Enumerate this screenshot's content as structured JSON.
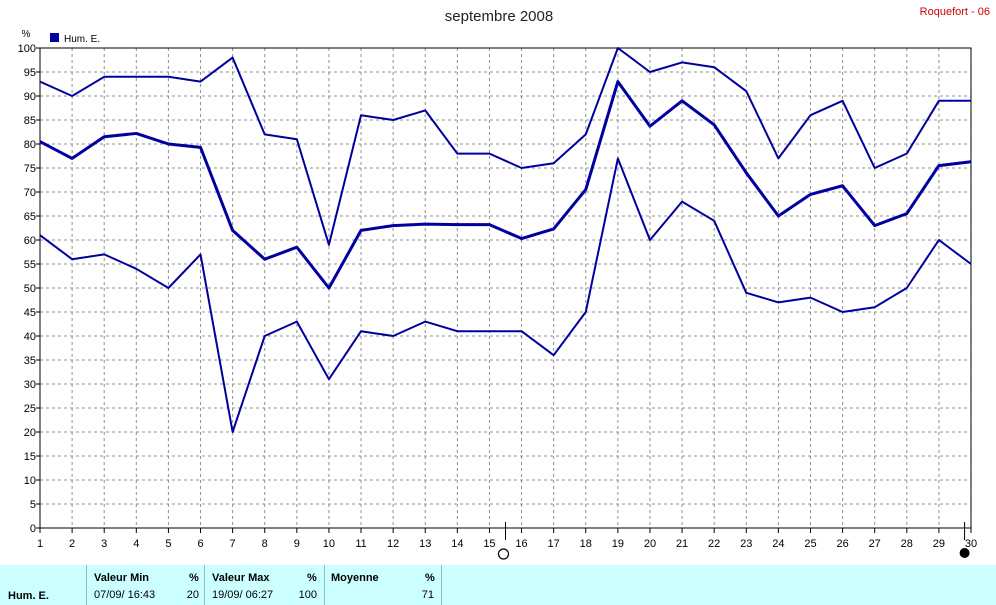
{
  "header": {
    "title": "septembre 2008",
    "station": "Roquefort - 06",
    "unit": "%",
    "legend_label": "Hum. E."
  },
  "chart_data": {
    "type": "line",
    "title": "septembre 2008",
    "ylabel": "%",
    "xlim": [
      1,
      30
    ],
    "ylim": [
      0,
      100
    ],
    "x_ticks": [
      1,
      2,
      3,
      4,
      5,
      6,
      7,
      8,
      9,
      10,
      11,
      12,
      13,
      14,
      15,
      16,
      17,
      18,
      19,
      20,
      21,
      22,
      23,
      24,
      25,
      26,
      27,
      28,
      29,
      30
    ],
    "y_ticks": [
      0,
      5,
      10,
      15,
      20,
      25,
      30,
      35,
      40,
      45,
      50,
      55,
      60,
      65,
      70,
      75,
      80,
      85,
      90,
      95,
      100
    ],
    "grid": true,
    "legend": "top-left",
    "series": [
      {
        "name": "Hum. E.",
        "role": "max",
        "values": [
          93,
          90,
          94,
          94,
          94,
          93,
          98,
          82,
          81,
          59,
          86,
          85,
          87,
          78,
          78,
          75,
          76,
          82,
          100,
          95,
          97,
          96,
          91,
          77,
          86,
          89,
          75,
          78,
          89,
          89
        ]
      },
      {
        "name": "Hum. E.",
        "role": "mean",
        "values": [
          80.5,
          77,
          81.5,
          82.2,
          80,
          79.3,
          62,
          56,
          58.5,
          50,
          62,
          63,
          63.3,
          63.2,
          63.2,
          60.3,
          62.3,
          70.5,
          93,
          83.7,
          89,
          84,
          74,
          65,
          69.5,
          71.3,
          63,
          65.5,
          75.5,
          76.3
        ]
      },
      {
        "name": "Hum. E.",
        "role": "min",
        "values": [
          61,
          56,
          57,
          54,
          50,
          57,
          20,
          40,
          43,
          31,
          41,
          40,
          43,
          41,
          41,
          41,
          36,
          45,
          77,
          60,
          68,
          64,
          49,
          47,
          48,
          45,
          46,
          50,
          60,
          55
        ]
      }
    ],
    "colors": {
      "series": "#0000a0",
      "grid": "#909090",
      "footer_bg": "#ccffff"
    },
    "markers": [
      {
        "symbol": "new-moon",
        "x": 15.5
      },
      {
        "symbol": "full-moon",
        "x": 29.8
      }
    ]
  },
  "footer": {
    "row_label": "Hum. E.",
    "min_header": "Valeur Min",
    "min_unit": "%",
    "min_date": "07/09/  16:43",
    "min_value": "20",
    "max_header": "Valeur Max",
    "max_unit": "%",
    "max_date": "19/09/  06:27",
    "max_value": "100",
    "avg_header": "Moyenne",
    "avg_unit": "%",
    "avg_value": "71"
  }
}
